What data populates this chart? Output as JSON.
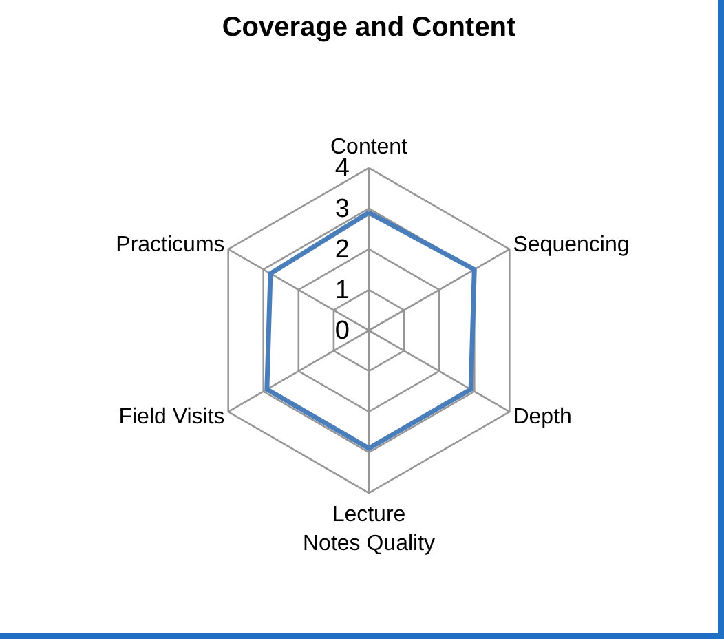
{
  "chart_data": {
    "type": "radar",
    "title": "Coverage and Content",
    "categories": [
      "Content",
      "Sequencing",
      "Depth",
      "Lecture Notes Quality",
      "Field Visits",
      "Practicums"
    ],
    "series": [
      {
        "color": "#4a7ebb",
        "values": [
          2.9,
          3.0,
          2.9,
          2.9,
          2.9,
          2.8
        ]
      }
    ],
    "ylim": [
      0,
      4
    ],
    "yticks": [
      0,
      1,
      2,
      3,
      4
    ],
    "grid": true
  }
}
